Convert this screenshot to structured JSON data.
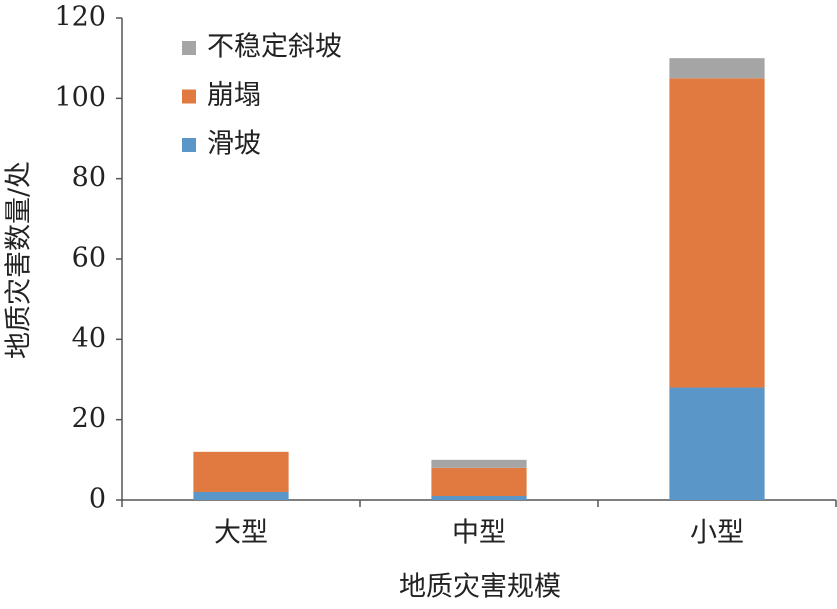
{
  "chart_data": {
    "type": "stacked_bar",
    "x_label": "地质灾害规模",
    "y_label": "地质灾害数量/处",
    "categories": [
      "大型",
      "中型",
      "小型"
    ],
    "series": [
      {
        "name": "滑坡",
        "color": "#5b96c8",
        "values": [
          2,
          1,
          28
        ]
      },
      {
        "name": "崩塌",
        "color": "#e07a40",
        "values": [
          10,
          7,
          77
        ]
      },
      {
        "name": "不稳定斜坡",
        "color": "#a5a5a5",
        "values": [
          0,
          2,
          5
        ]
      }
    ],
    "ylim": [
      0,
      120
    ],
    "yticks": [
      0,
      20,
      40,
      60,
      80,
      100,
      120
    ],
    "grid": false,
    "legend": "upper-left"
  }
}
